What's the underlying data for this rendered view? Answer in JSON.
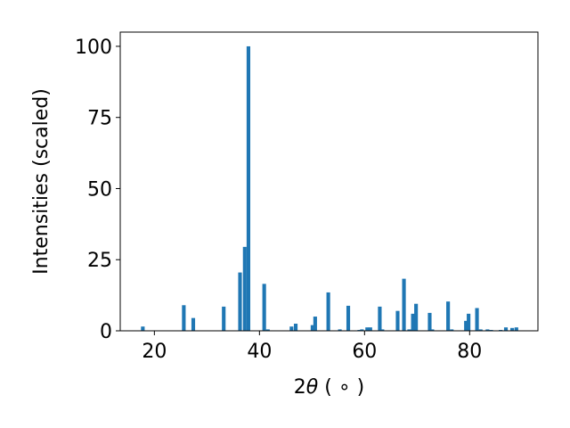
{
  "chart_data": {
    "type": "bar",
    "title": "",
    "xlabel_parts": {
      "prefix": "2",
      "symbol": "θ",
      "suffix": " ( ∘ )"
    },
    "ylabel": "Intensities (scaled)",
    "xlim": [
      13.5,
      93
    ],
    "ylim": [
      0,
      105
    ],
    "xticks": [
      20,
      40,
      60,
      80
    ],
    "yticks": [
      0,
      25,
      50,
      75,
      100
    ],
    "grid": false,
    "bar_color": "#1f77b4",
    "bar_width": 0.7,
    "x": [
      17.8,
      25.6,
      27.4,
      33.2,
      36.3,
      37.2,
      37.9,
      40.9,
      41.6,
      46.1,
      46.9,
      50.1,
      50.6,
      53.1,
      55.3,
      56.9,
      59.0,
      59.5,
      60.5,
      61.1,
      62.9,
      63.4,
      66.3,
      67.5,
      68.5,
      69.2,
      69.8,
      72.4,
      72.9,
      75.9,
      76.6,
      79.3,
      79.8,
      81.4,
      82.1,
      83.4,
      84.1,
      85.9,
      86.9,
      88.1,
      88.9
    ],
    "values": [
      1.5,
      9,
      4.5,
      8.5,
      20.5,
      29.5,
      100,
      16.5,
      0.5,
      1.5,
      2.5,
      2,
      5,
      13.5,
      0.5,
      8.8,
      0.3,
      0.5,
      1.2,
      1.2,
      8.5,
      0.5,
      7,
      18.3,
      0.5,
      6,
      9.5,
      6.3,
      0.5,
      10.3,
      0.5,
      3.5,
      6,
      8,
      0.5,
      0.5,
      0.3,
      0.3,
      1.2,
      1,
      1.2
    ]
  }
}
